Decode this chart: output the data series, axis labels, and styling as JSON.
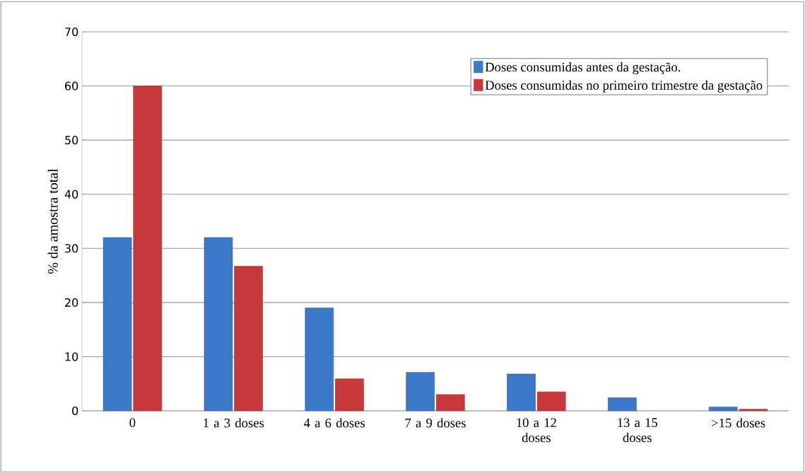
{
  "chart_data": {
    "type": "bar",
    "ylabel": "% da amostra total",
    "categories": [
      "0",
      "1 a 3 doses",
      "4 a 6 doses",
      "7 a 9 doses",
      "10 a 12 doses",
      "13 a 15 doses",
      ">15 doses"
    ],
    "series": [
      {
        "name": "Doses consumidas antes da gestação.",
        "color": "#3c78c8",
        "values": [
          32,
          32,
          19,
          7.1,
          6.8,
          2.4,
          0.7
        ]
      },
      {
        "name": "Doses consumidas no primeiro trimestre da gestação",
        "color": "#c8383a",
        "values": [
          60,
          26.7,
          5.9,
          3.0,
          3.5,
          null,
          0.3
        ]
      }
    ],
    "ylim": [
      0,
      70
    ],
    "yticks": [
      0,
      10,
      20,
      30,
      40,
      50,
      60,
      70
    ],
    "grid": "y",
    "legend": "top right"
  }
}
